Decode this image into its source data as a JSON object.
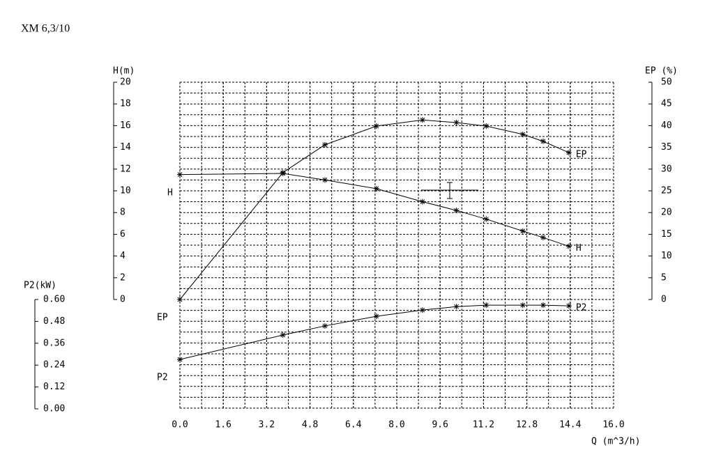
{
  "chart_data": {
    "type": "line",
    "title": "XM 6,3/10",
    "x_label": "Q (m^3/h)",
    "y_label": "H(m)",
    "y2_label": "EP (%)",
    "y3_label": "P2(kW)",
    "xlim": [
      0,
      16
    ],
    "xticks": [
      {
        "value": 0,
        "label": "0.0"
      },
      1.6,
      3.2,
      4.8,
      6.4,
      {
        "value": 8,
        "label": "8.0"
      },
      9.6,
      11.2,
      12.8,
      14.4,
      {
        "value": 16,
        "label": "16.0"
      }
    ],
    "ylim": [
      0,
      20
    ],
    "yticks": [
      0,
      2,
      4,
      6,
      8,
      10,
      12,
      14,
      16,
      18,
      20
    ],
    "y2lim": [
      0,
      50
    ],
    "y2ticks": [
      0,
      5,
      10,
      15,
      20,
      25,
      30,
      35,
      40,
      45,
      50
    ],
    "y3lim": [
      0,
      0.6
    ],
    "y3ticks": [
      {
        "value": 0,
        "label": "0.00"
      },
      0.12,
      0.24,
      0.36,
      0.48,
      {
        "value": 0.6,
        "label": "0.60"
      }
    ],
    "grid": true,
    "x": [
      0,
      3.8,
      5.35,
      7.25,
      8.95,
      10.2,
      11.3,
      12.65,
      13.4,
      14.35
    ],
    "series": [
      {
        "name": "H",
        "color": "#000000",
        "axis": "y",
        "values": [
          11.5,
          11.6,
          11.0,
          10.2,
          9.0,
          8.2,
          7.4,
          6.3,
          5.7,
          4.9
        ]
      },
      {
        "name": "EP",
        "color": "#000000",
        "axis": "y2",
        "values": [
          0,
          29.2,
          35.6,
          39.9,
          41.3,
          40.7,
          39.9,
          38.0,
          36.4,
          33.8
        ]
      },
      {
        "name": "P2",
        "color": "#000000",
        "axis": "y3",
        "values": [
          0.271,
          0.405,
          0.455,
          0.508,
          0.542,
          0.561,
          0.569,
          0.569,
          0.569,
          0.565
        ]
      }
    ]
  }
}
